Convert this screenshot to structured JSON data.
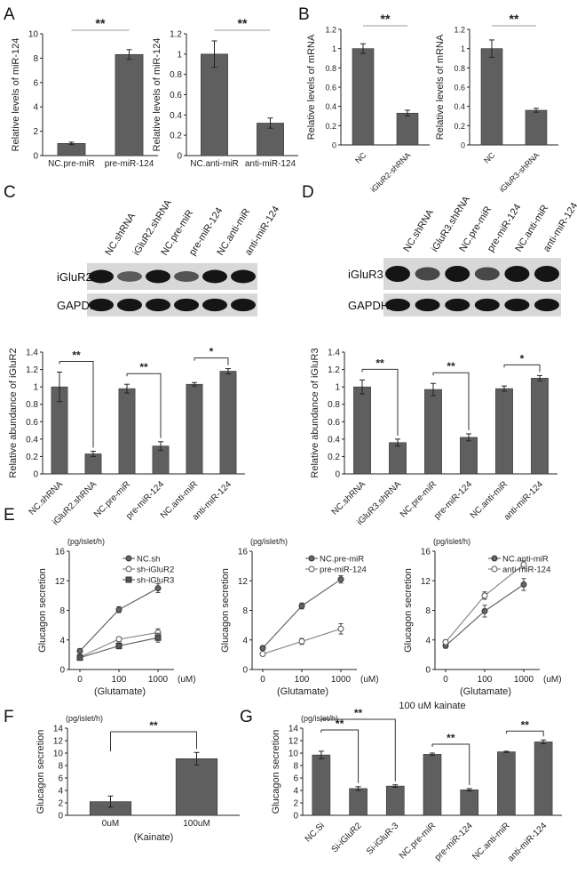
{
  "chart_data": [
    {
      "id": "A1",
      "panel_letter": "A",
      "type": "bar",
      "ylabel": "Relative levels of miR-124",
      "ylim": [
        0,
        10
      ],
      "ticks": [
        0,
        2,
        4,
        6,
        8,
        10
      ],
      "categories": [
        "NC.pre-miR",
        "pre-miR-124"
      ],
      "values": [
        1.0,
        8.3
      ],
      "errors": [
        0.1,
        0.4
      ],
      "significance": [
        {
          "from": 0,
          "to": 1,
          "label": "**",
          "style": "line"
        }
      ]
    },
    {
      "id": "A2",
      "type": "bar",
      "ylabel": "Relative levels of miR-124",
      "ylim": [
        0,
        1.2
      ],
      "ticks": [
        0,
        0.2,
        0.4,
        0.6,
        0.8,
        1,
        1.2
      ],
      "categories": [
        "NC.anti-miR",
        "anti-miR-124"
      ],
      "values": [
        1.0,
        0.32
      ],
      "errors": [
        0.13,
        0.05
      ],
      "significance": [
        {
          "from": 0,
          "to": 1,
          "label": "**",
          "style": "line"
        }
      ]
    },
    {
      "id": "B1",
      "panel_letter": "B",
      "type": "bar",
      "ylabel": "Relative levels of mRNA",
      "ylim": [
        0,
        1.2
      ],
      "ticks": [
        0,
        0.2,
        0.4,
        0.6,
        0.8,
        1,
        1.2
      ],
      "categories": [
        "NC",
        "iGluR2-shRNA"
      ],
      "values": [
        1.0,
        0.33
      ],
      "errors": [
        0.05,
        0.03
      ],
      "significance": [
        {
          "from": 0,
          "to": 1,
          "label": "**",
          "style": "line"
        }
      ]
    },
    {
      "id": "B2",
      "type": "bar",
      "ylabel": "Relative levels of mRNA",
      "ylim": [
        0,
        1.2
      ],
      "ticks": [
        0,
        0.2,
        0.4,
        0.6,
        0.8,
        1,
        1.2
      ],
      "categories": [
        "NC",
        "iGluR3-shRNA"
      ],
      "values": [
        1.0,
        0.36
      ],
      "errors": [
        0.09,
        0.02
      ],
      "significance": [
        {
          "from": 0,
          "to": 1,
          "label": "**",
          "style": "line"
        }
      ]
    },
    {
      "id": "C",
      "type": "bar",
      "ylabel": "Relative abundance of iGluR2",
      "ylim": [
        0,
        1.4
      ],
      "ticks": [
        0,
        0.2,
        0.4,
        0.6,
        0.8,
        1,
        1.2,
        1.4
      ],
      "categories": [
        "NC.shRNA",
        "iGluR2.shRNA",
        "NC.pre-miR",
        "pre-miR-124",
        "NC.anti-miR",
        "anti-miR-124"
      ],
      "values": [
        1.0,
        0.23,
        0.98,
        0.32,
        1.03,
        1.18
      ],
      "errors": [
        0.17,
        0.03,
        0.05,
        0.05,
        0.02,
        0.03
      ],
      "significance": [
        {
          "from": 0,
          "to": 1,
          "label": "**",
          "style": "bracket"
        },
        {
          "from": 2,
          "to": 3,
          "label": "**",
          "style": "bracket"
        },
        {
          "from": 4,
          "to": 5,
          "label": "*",
          "style": "bracket"
        }
      ]
    },
    {
      "id": "D",
      "type": "bar",
      "ylabel": "Relative abundance of iGluR3",
      "ylim": [
        0,
        1.4
      ],
      "ticks": [
        0,
        0.2,
        0.4,
        0.6,
        0.8,
        1,
        1.2,
        1.4
      ],
      "categories": [
        "NC.shRNA",
        "iGluR3.shRNA",
        "NC.pre-miR",
        "pre-miR-124",
        "NC.anti-miR",
        "anti-miR-124"
      ],
      "values": [
        1.0,
        0.36,
        0.97,
        0.42,
        0.98,
        1.1
      ],
      "errors": [
        0.08,
        0.04,
        0.07,
        0.04,
        0.03,
        0.03
      ],
      "significance": [
        {
          "from": 0,
          "to": 1,
          "label": "**",
          "style": "bracket"
        },
        {
          "from": 2,
          "to": 3,
          "label": "**",
          "style": "bracket"
        },
        {
          "from": 4,
          "to": 5,
          "label": "*",
          "style": "bracket"
        }
      ]
    },
    {
      "id": "E1",
      "panel_letter": "E",
      "type": "line",
      "ylabel": "Glucagon secretion",
      "unit": "(pg/islet/h)",
      "ylim": [
        0,
        16
      ],
      "ticks": [
        0,
        4,
        8,
        12,
        16
      ],
      "x": [
        "0",
        "100",
        "1000"
      ],
      "xunit": "(uM)",
      "xlabel": "(Glutamate)",
      "legend_position": "top-right",
      "series": [
        {
          "name": "NC.sh",
          "marker": "filled-circle",
          "values": [
            2.5,
            8.1,
            11.0
          ],
          "errors": [
            0.3,
            0.4,
            0.6
          ]
        },
        {
          "name": "sh-iGluR2",
          "marker": "open-circle",
          "values": [
            1.7,
            4.1,
            5.0
          ],
          "errors": [
            0.2,
            0.3,
            0.5
          ]
        },
        {
          "name": "sh-iGluR3",
          "marker": "filled-square",
          "values": [
            1.6,
            3.2,
            4.3
          ],
          "errors": [
            0.2,
            0.4,
            0.6
          ]
        }
      ]
    },
    {
      "id": "E2",
      "type": "line",
      "ylabel": "Glucagon secretion",
      "unit": "(pg/islet/h)",
      "ylim": [
        0,
        16
      ],
      "ticks": [
        0,
        4,
        8,
        12,
        16
      ],
      "x": [
        "0",
        "100",
        "1000"
      ],
      "xunit": "(uM)",
      "xlabel": "(Glutamate)",
      "legend_position": "top-right",
      "series": [
        {
          "name": "NC.pre-miR",
          "marker": "filled-circle",
          "values": [
            2.9,
            8.6,
            12.2
          ],
          "errors": [
            0.3,
            0.4,
            0.5
          ]
        },
        {
          "name": "pre-miR-124",
          "marker": "open-circle",
          "values": [
            2.1,
            3.8,
            5.5
          ],
          "errors": [
            0.2,
            0.4,
            0.7
          ]
        }
      ]
    },
    {
      "id": "E3",
      "type": "line",
      "ylabel": "Glucagon secretion",
      "unit": "(pg/islet/h)",
      "ylim": [
        0,
        16
      ],
      "ticks": [
        0,
        4,
        8,
        12,
        16
      ],
      "x": [
        "0",
        "100",
        "1000"
      ],
      "xunit": "(uM)",
      "xlabel": "(Glutamate)",
      "legend_position": "top-right",
      "series": [
        {
          "name": "NC.anti-miR",
          "marker": "filled-circle",
          "values": [
            3.2,
            7.9,
            11.5
          ],
          "errors": [
            0.3,
            0.8,
            0.8
          ]
        },
        {
          "name": "anti-miR-124",
          "marker": "open-circle",
          "values": [
            3.7,
            10.0,
            14.2
          ],
          "errors": [
            0.3,
            0.5,
            0.5
          ]
        }
      ]
    },
    {
      "id": "F",
      "panel_letter": "F",
      "type": "bar",
      "ylabel": "Glucagon secretion",
      "unit": "(pg/islet/h)",
      "ylim": [
        0,
        14
      ],
      "ticks": [
        0,
        2,
        4,
        6,
        8,
        10,
        12,
        14
      ],
      "categories": [
        "0uM",
        "100uM"
      ],
      "xlabel": "(Kainate)",
      "values": [
        2.2,
        9.1
      ],
      "errors": [
        0.9,
        1.0
      ],
      "significance": [
        {
          "from": 0,
          "to": 1,
          "label": "**",
          "style": "bracket"
        }
      ]
    },
    {
      "id": "G",
      "panel_letter": "G",
      "type": "bar",
      "title": "100 uM kainate",
      "ylabel": "Glucagon secretion",
      "unit": "(pg/islet/h)",
      "ylim": [
        0,
        14
      ],
      "ticks": [
        0,
        2,
        4,
        6,
        8,
        10,
        12,
        14
      ],
      "categories": [
        "NC.Si",
        "Si-iGluR2",
        "Si-iGluR-3",
        "NC.pre-miR",
        "pre-miR-124",
        "NC.anti-miR",
        "anti-miR-124"
      ],
      "values": [
        9.7,
        4.3,
        4.7,
        9.8,
        4.1,
        10.2,
        11.8
      ],
      "errors": [
        0.6,
        0.3,
        0.2,
        0.2,
        0.2,
        0.1,
        0.3
      ],
      "significance": [
        {
          "from": 0,
          "to": 1,
          "label": "**",
          "style": "bracket"
        },
        {
          "from": 0,
          "to": 2,
          "label": "**",
          "style": "bracket"
        },
        {
          "from": 3,
          "to": 4,
          "label": "**",
          "style": "bracket"
        },
        {
          "from": 5,
          "to": 6,
          "label": "**",
          "style": "bracket"
        }
      ]
    }
  ],
  "blots": [
    {
      "id": "C",
      "panel_letter": "C",
      "lanes": [
        "NC.shRNA",
        "iGluR2.shRNA",
        "NC.pre-miR",
        "pre-miR-124",
        "NC.anti-miR",
        "anti-miR-124"
      ],
      "rows": [
        {
          "label": "iGluR2",
          "intensity": [
            1.0,
            0.45,
            1.0,
            0.5,
            1.0,
            1.0
          ]
        },
        {
          "label": "GAPDH",
          "intensity": [
            1,
            1,
            1,
            1,
            1,
            1
          ]
        }
      ]
    },
    {
      "id": "D",
      "panel_letter": "D",
      "lanes": [
        "NC.shRNA",
        "iGluR3.shRNA",
        "NC.pre-miR",
        "pre-miR-124",
        "NC.anti-miR",
        "anti-miR-124"
      ],
      "rows": [
        {
          "label": "iGluR3",
          "intensity": [
            1.0,
            0.6,
            1.0,
            0.6,
            1.0,
            1.0
          ]
        },
        {
          "label": "GAPDH",
          "intensity": [
            1,
            1,
            1,
            1,
            1,
            1
          ]
        }
      ]
    }
  ],
  "colors": {
    "bar": "#5f5f5f",
    "axis": "#222222",
    "blot_bg": "#d8d8d8",
    "band": "#151515"
  }
}
